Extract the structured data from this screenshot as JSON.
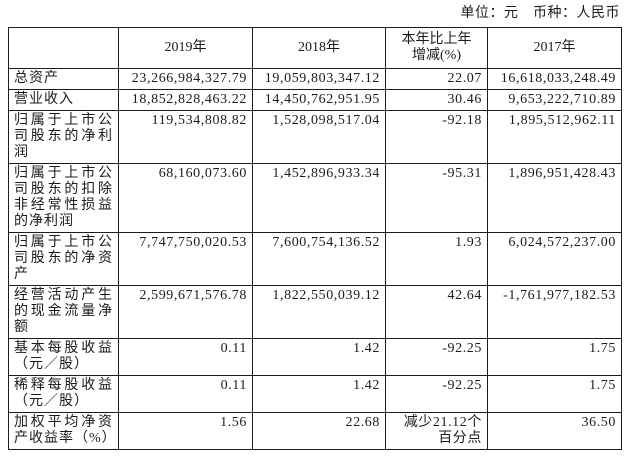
{
  "unit_line": "单位：元　币种：人民币",
  "table": {
    "headers": [
      "",
      "2019年",
      "2018年",
      "本年比上年\n增减(%)",
      "2017年"
    ],
    "rows": [
      {
        "label": "总资产",
        "y2019": "23,266,984,327.79",
        "y2018": "19,059,803,347.12",
        "change": "22.07",
        "y2017": "16,618,033,248.49"
      },
      {
        "label": "营业收入",
        "y2019": "18,852,828,463.22",
        "y2018": "14,450,762,951.95",
        "change": "30.46",
        "y2017": "9,653,222,710.89"
      },
      {
        "label": "归属于上市公司股东的净利润",
        "y2019": "119,534,808.82",
        "y2018": "1,528,098,517.04",
        "change": "-92.18",
        "y2017": "1,895,512,962.11"
      },
      {
        "label": "归属于上市公司股东的扣除非经常性损益的净利润",
        "y2019": "68,160,073.60",
        "y2018": "1,452,896,933.34",
        "change": "-95.31",
        "y2017": "1,896,951,428.43"
      },
      {
        "label": "归属于上市公司股东的净资产",
        "y2019": "7,747,750,020.53",
        "y2018": "7,600,754,136.52",
        "change": "1.93",
        "y2017": "6,024,572,237.00"
      },
      {
        "label": "经营活动产生的现金流量净额",
        "y2019": "2,599,671,576.78",
        "y2018": "1,822,550,039.12",
        "change": "42.64",
        "y2017": "-1,761,977,182.53"
      },
      {
        "label": "基本每股收益（元／股）",
        "y2019": "0.11",
        "y2018": "1.42",
        "change": "-92.25",
        "y2017": "1.75"
      },
      {
        "label": "稀释每股收益（元／股）",
        "y2019": "0.11",
        "y2018": "1.42",
        "change": "-92.25",
        "y2017": "1.75"
      },
      {
        "label": "加权平均净资产收益率（%）",
        "y2019": "1.56",
        "y2018": "22.68",
        "change": "减少21.12个\n百分点",
        "y2017": "36.50"
      }
    ]
  }
}
